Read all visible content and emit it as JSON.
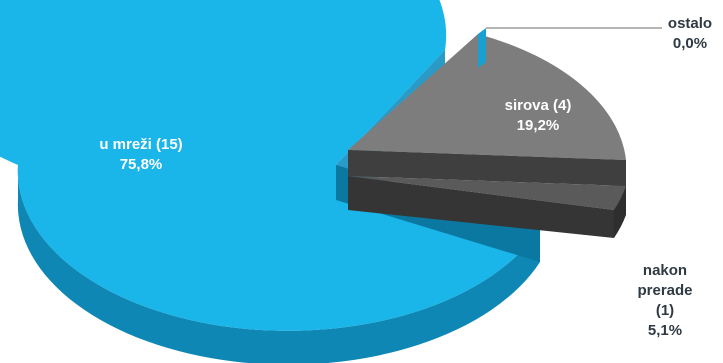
{
  "chart_data": {
    "type": "pie",
    "style": "3d-exploded",
    "title": "",
    "categories": [
      "u mreži (15)",
      "sirova (4)",
      "nakon prerade (1)",
      "ostalo"
    ],
    "values": [
      75.8,
      19.2,
      5.1,
      0.0
    ],
    "percent_labels": [
      "75,8%",
      "19,2%",
      "5,1%",
      "0,0%"
    ],
    "colors": [
      "#1bb4e8",
      "#7a7a7a",
      "#4a4a4a",
      "#2a2a2a"
    ],
    "legend": "none"
  },
  "labels": {
    "mreza_name": "u mreži (15)",
    "mreza_pct": "75,8%",
    "sirova_name": "sirova (4)",
    "sirova_pct": "19,2%",
    "nakon_line1": "nakon",
    "nakon_line2": "prerade",
    "nakon_line3": "(1)",
    "nakon_pct": "5,1%",
    "ostalo_name": "ostalo",
    "ostalo_pct": "0,0%"
  }
}
